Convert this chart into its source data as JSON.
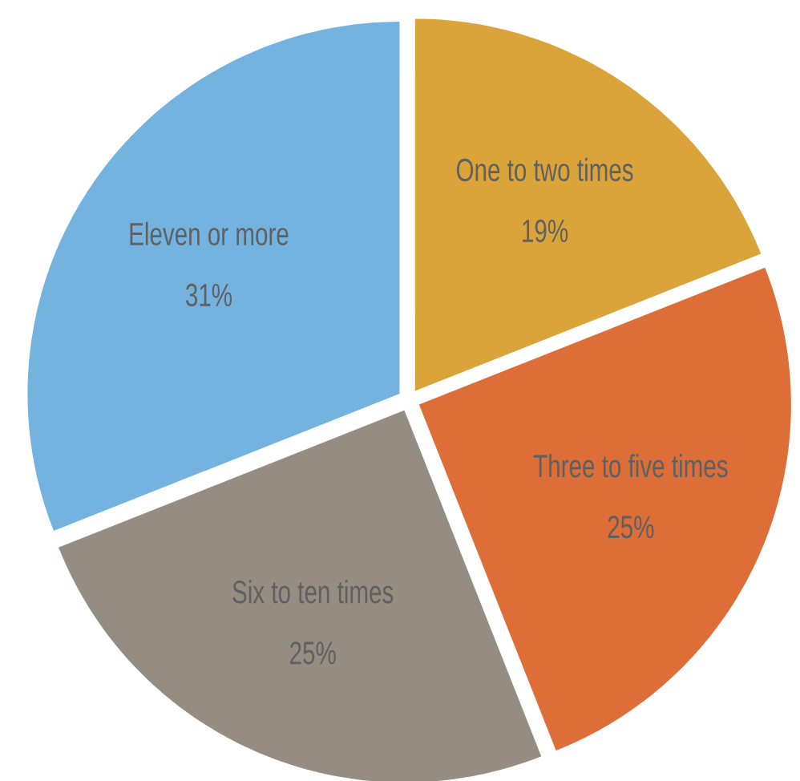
{
  "chart_data": {
    "type": "pie",
    "categories": [
      "One to two times",
      "Three to five times",
      "Six to ten times",
      "Eleven or more"
    ],
    "values": [
      19,
      25,
      25,
      31
    ],
    "colors": [
      "#dba43a",
      "#dd6e38",
      "#958c82",
      "#74b3df"
    ],
    "value_labels": [
      "19%",
      "25%",
      "25%",
      "31%"
    ]
  }
}
